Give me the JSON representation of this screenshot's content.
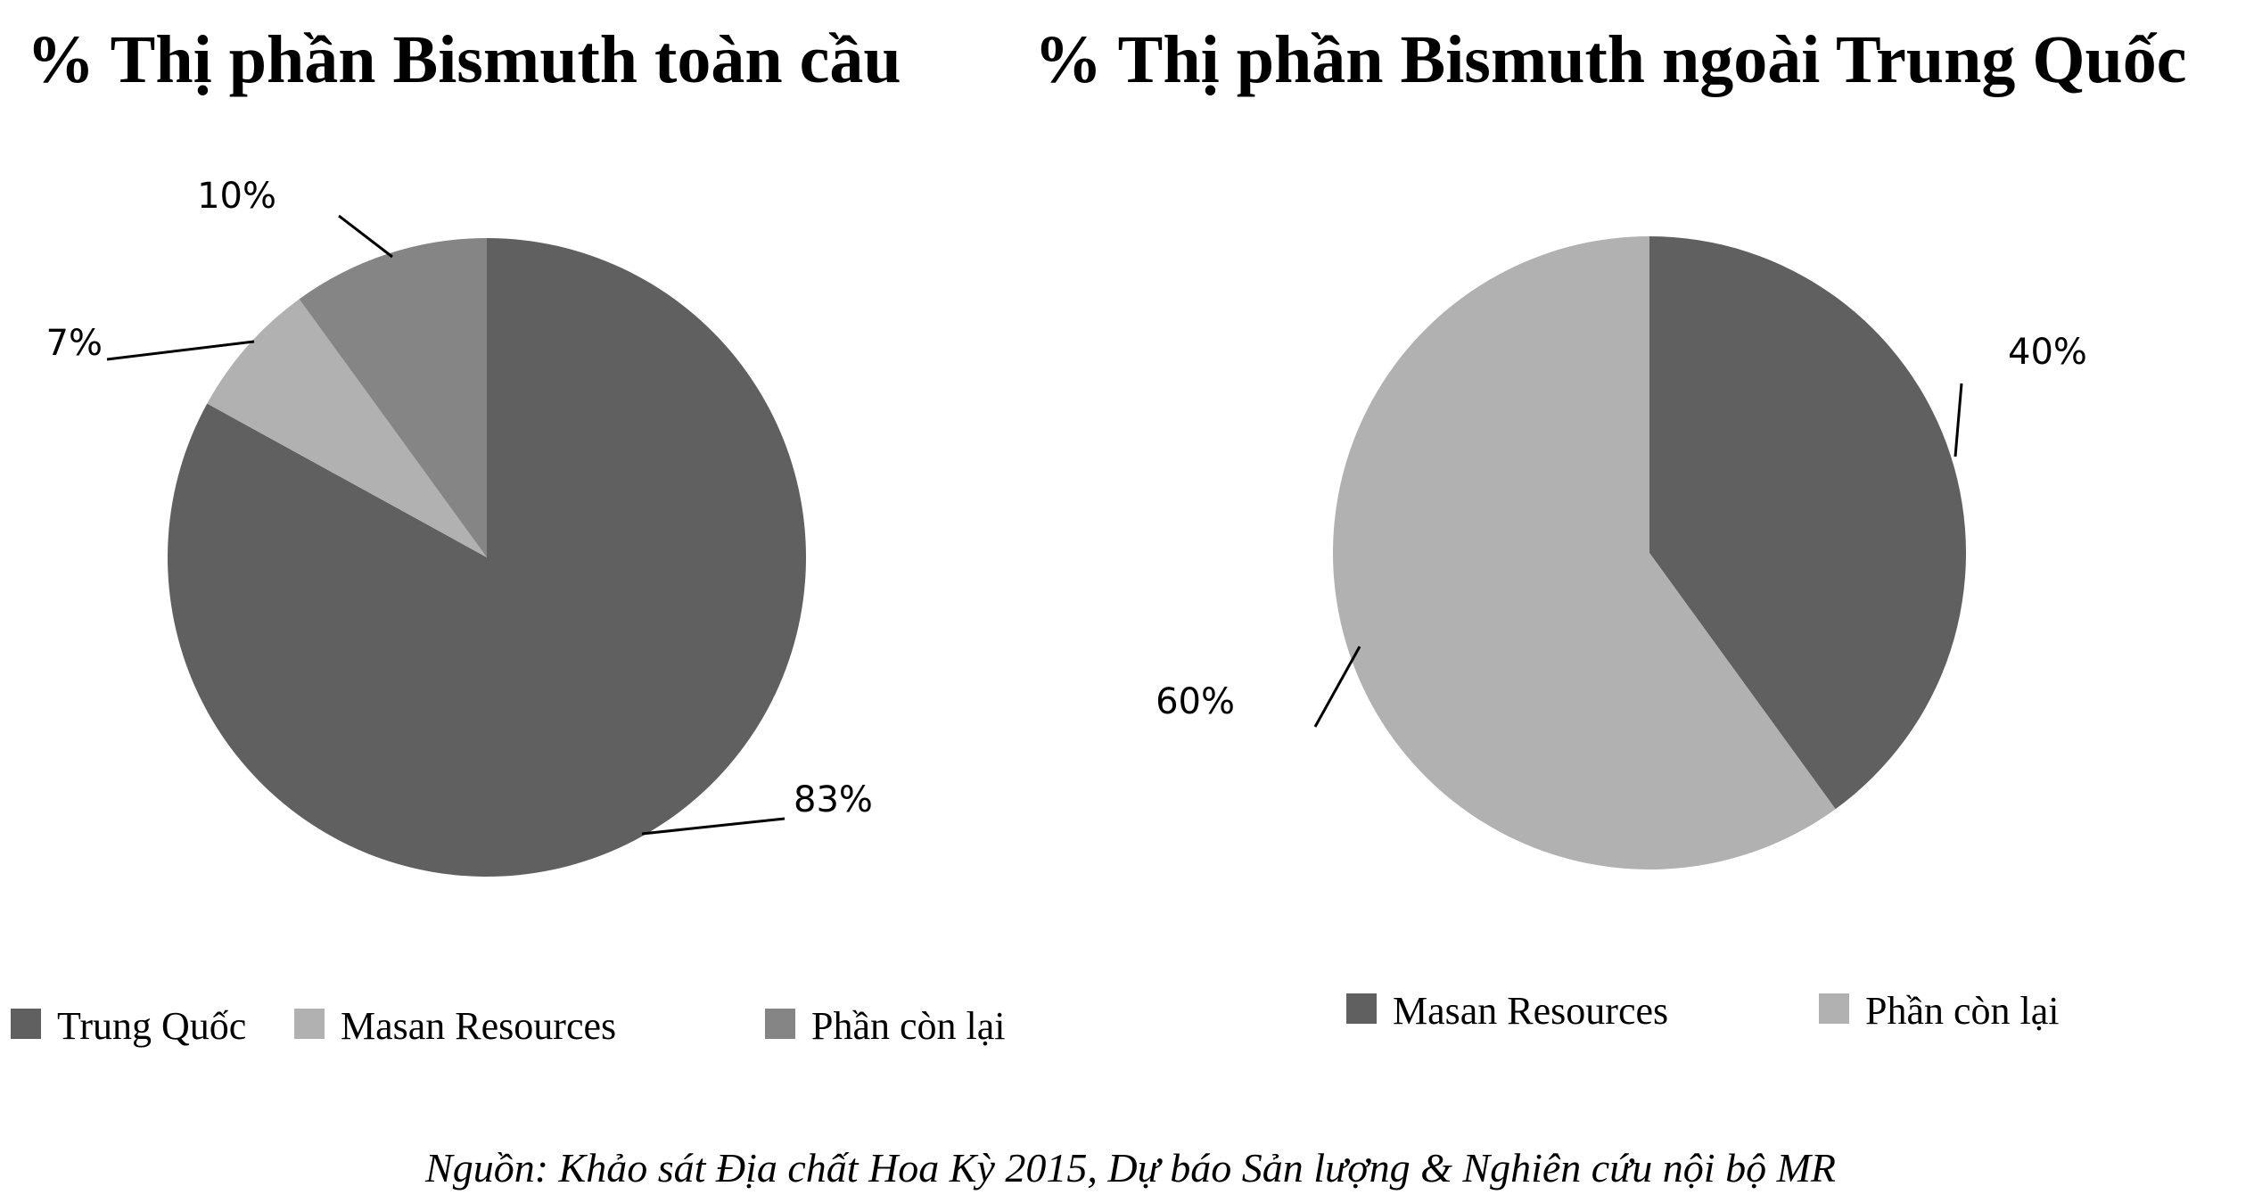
{
  "source_note": "Nguồn: Khảo sát Địa chất Hoa Kỳ 2015, Dự báo Sản lượng & Nghiên cứu nội bộ MR",
  "colors": {
    "dark": "#606060",
    "light": "#b1b1b1",
    "mid": "#858585"
  },
  "chart_data": [
    {
      "type": "pie",
      "title": "% Thị phần Bismuth toàn cầu",
      "categories": [
        "Trung Quốc",
        "Masan Resources",
        "Phần còn lại"
      ],
      "values": [
        83,
        7,
        10
      ],
      "labels": [
        "83%",
        "7%",
        "10%"
      ],
      "colors": [
        "#606060",
        "#b1b1b1",
        "#858585"
      ],
      "legend": "bottom"
    },
    {
      "type": "pie",
      "title": "% Thị phần Bismuth ngoài Trung Quốc",
      "categories": [
        "Masan Resources",
        "Phần còn lại"
      ],
      "values": [
        40,
        60
      ],
      "labels": [
        "40%",
        "60%"
      ],
      "colors": [
        "#606060",
        "#b1b1b1"
      ],
      "legend": "bottom"
    }
  ]
}
